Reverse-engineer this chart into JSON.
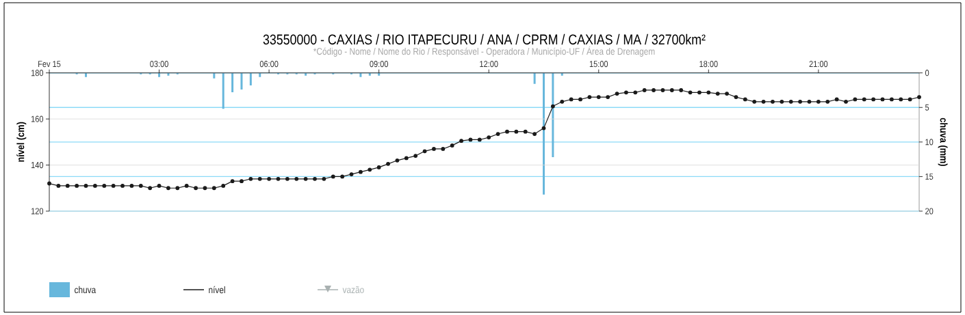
{
  "chart_data": {
    "type": "line",
    "title": "33550000 - CAXIAS / RIO ITAPECURU / ANA / CPRM / CAXIAS / MA / 32700km²",
    "subtitle": "*Código - Nome / Nome do Rio / Responsável - Operadora / Município-UF / Área de Drenagem",
    "ylabel": "nível (cm)",
    "y2label": "chuva (mm)",
    "x": [
      0,
      0.25,
      0.5,
      0.75,
      1,
      1.25,
      1.5,
      1.75,
      2,
      2.25,
      2.5,
      2.75,
      3,
      3.25,
      3.5,
      3.75,
      4,
      4.25,
      4.5,
      4.75,
      5,
      5.25,
      5.5,
      5.75,
      6,
      6.25,
      6.5,
      6.75,
      7,
      7.25,
      7.5,
      7.75,
      8,
      8.25,
      8.5,
      8.75,
      9,
      9.25,
      9.5,
      9.75,
      10,
      10.25,
      10.5,
      10.75,
      11,
      11.25,
      11.5,
      11.75,
      12,
      12.25,
      12.5,
      12.75,
      13,
      13.25,
      13.5,
      13.75,
      14,
      14.25,
      14.5,
      14.75,
      15,
      15.25,
      15.5,
      15.75,
      16,
      16.25,
      16.5,
      16.75,
      17,
      17.25,
      17.5,
      17.75,
      18,
      18.25,
      18.5,
      18.75,
      19,
      19.25,
      19.5,
      19.75,
      20,
      20.25,
      20.5,
      20.75,
      21,
      21.25,
      21.5,
      21.75,
      22,
      22.25,
      22.5,
      22.75,
      23,
      23.25,
      23.5,
      23.75
    ],
    "series": [
      {
        "name": "chuva",
        "type": "bar",
        "axis": "y2",
        "color": "#67b7dc",
        "values": [
          null,
          null,
          null,
          0.2,
          0.6,
          null,
          null,
          null,
          null,
          null,
          0.2,
          0.2,
          0.6,
          0.4,
          0.2,
          null,
          null,
          null,
          0.8,
          5.2,
          2.8,
          2.4,
          1.8,
          0.6,
          null,
          0.2,
          0.2,
          0.2,
          0.4,
          0.2,
          null,
          0.2,
          null,
          0.2,
          0.6,
          0.4,
          0.4,
          null,
          null,
          null,
          null,
          null,
          null,
          null,
          null,
          null,
          null,
          null,
          null,
          null,
          null,
          null,
          null,
          1.6,
          17.6,
          12.2,
          0.4,
          null,
          null,
          null,
          null,
          null,
          null,
          null,
          null,
          null,
          null,
          null,
          null,
          null,
          null,
          null,
          null,
          null,
          null,
          null,
          null,
          null,
          null,
          null,
          null,
          null,
          null,
          null,
          null,
          null,
          null,
          null,
          null,
          null,
          null,
          null,
          null,
          null,
          null,
          null
        ]
      },
      {
        "name": "nível",
        "color": "#1a1a1a",
        "marker": "circle",
        "values": [
          132,
          131,
          131,
          131,
          131,
          131,
          131,
          131,
          131,
          131,
          131,
          130,
          131,
          130,
          130,
          131,
          130,
          130,
          130,
          131,
          133,
          133,
          134,
          134,
          134,
          134,
          134,
          134,
          134,
          134,
          134,
          135,
          135,
          136,
          137,
          138,
          139,
          140.5,
          142,
          143,
          144,
          146,
          147,
          147,
          148.5,
          150.5,
          151,
          151,
          152,
          153.5,
          154.5,
          154.5,
          154.5,
          153.5,
          156,
          165.5,
          167.5,
          168.5,
          168.5,
          169.5,
          169.5,
          169.5,
          171,
          171.5,
          171.5,
          172.5,
          172.5,
          172.5,
          172.5,
          172.5,
          171.5,
          171.5,
          171.5,
          171,
          171,
          169.5,
          168.5,
          167.5,
          167.5,
          167.5,
          167.5,
          167.5,
          167.5,
          167.5,
          167.5,
          167.5,
          168.5,
          167.5,
          168.5,
          168.5,
          168.5,
          168.5,
          168.5,
          168.5,
          168.5,
          169.5
        ]
      },
      {
        "name": "vazão",
        "color": "#a9b1b1",
        "marker": "triangle",
        "values": [
          null,
          null,
          null,
          null,
          null,
          null,
          null,
          null,
          null,
          null,
          null,
          null,
          null,
          null,
          null,
          null,
          null,
          null,
          null,
          null,
          null,
          null,
          null,
          null,
          null,
          null,
          null,
          null,
          null,
          null,
          null,
          null,
          null,
          null,
          null,
          null,
          null,
          null,
          null,
          null,
          null,
          null,
          null,
          null,
          null,
          null,
          null,
          null,
          null,
          null,
          null,
          null,
          null,
          null,
          null,
          null,
          null,
          null,
          null,
          null,
          null,
          null,
          null,
          null,
          null,
          null,
          null,
          null,
          null,
          null,
          null,
          null,
          null,
          null,
          null,
          null,
          null,
          null,
          null,
          null,
          null,
          null,
          null,
          null,
          null,
          null,
          null,
          null,
          null,
          null,
          null,
          null,
          null,
          null,
          null,
          null
        ]
      }
    ],
    "xlim": [
      0,
      23.75
    ],
    "xticks": [
      {
        "value": 0,
        "label": "Fev 15"
      },
      {
        "value": 3,
        "label": "03:00"
      },
      {
        "value": 6,
        "label": "06:00"
      },
      {
        "value": 9,
        "label": "09:00"
      },
      {
        "value": 12,
        "label": "12:00"
      },
      {
        "value": 15,
        "label": "15:00"
      },
      {
        "value": 18,
        "label": "18:00"
      },
      {
        "value": 21,
        "label": "21:00"
      }
    ],
    "ylim": [
      120,
      180
    ],
    "yticks": [
      120,
      140,
      160,
      180
    ],
    "y2lim": [
      20,
      0
    ],
    "y2ticks": [
      0,
      5,
      10,
      15,
      20
    ],
    "grid": true,
    "legend": "bottom"
  }
}
